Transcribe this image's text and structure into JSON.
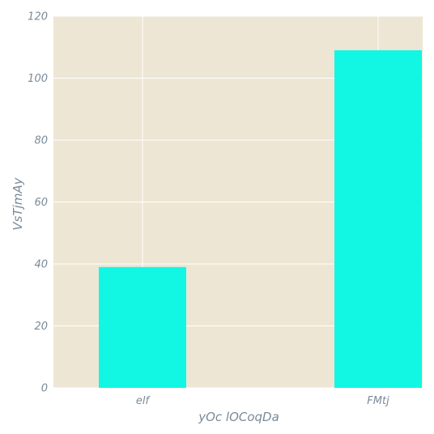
{
  "chart_data": {
    "type": "bar",
    "title": "",
    "xlabel": "yOc lOCoqDa",
    "ylabel": "VsTjmAy",
    "categories": [
      "elf",
      "FMtj"
    ],
    "values": [
      39,
      109
    ],
    "ylim": [
      0,
      120
    ],
    "yticks": [
      0,
      20,
      40,
      60,
      80,
      100,
      120
    ],
    "grid": true,
    "legend": "none",
    "colors": {
      "bar": "#12f7e3",
      "plot_background": "#ede6d4",
      "grid": "#ffffff",
      "text": "#7a8a99"
    }
  }
}
